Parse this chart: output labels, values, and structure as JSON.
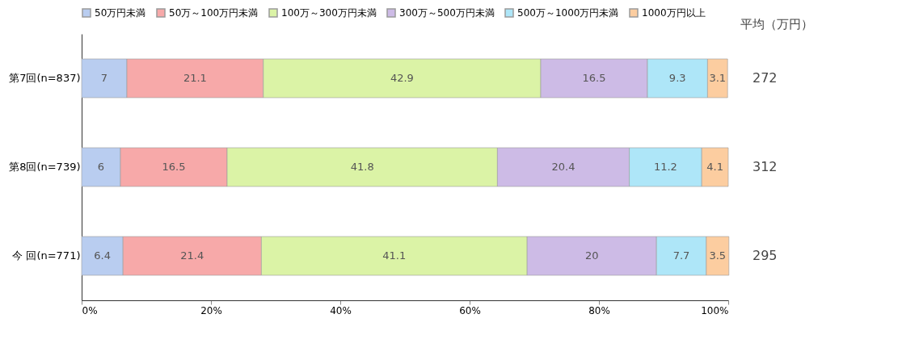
{
  "chart_data": {
    "type": "bar",
    "orientation": "horizontal",
    "stacked": true,
    "data_labels": true,
    "legend": "top",
    "categories": [
      "第7回(n=837)",
      "第8回(n=739)",
      "今 回(n=771)"
    ],
    "series": [
      {
        "name": "50万円未満",
        "color": "#b9cdf0",
        "values": [
          7,
          6,
          6.4
        ]
      },
      {
        "name": "50万～100万円未満",
        "color": "#f7a9a9",
        "values": [
          21.1,
          16.5,
          21.4
        ]
      },
      {
        "name": "100万～300万円未満",
        "color": "#dbf3a6",
        "values": [
          42.9,
          41.8,
          41.1
        ]
      },
      {
        "name": "300万～500万円未満",
        "color": "#cdbbe6",
        "values": [
          16.5,
          20.4,
          20
        ]
      },
      {
        "name": "500万～1000万円未満",
        "color": "#aee6f8",
        "values": [
          9.3,
          11.2,
          7.7
        ]
      },
      {
        "name": "1000万円以上",
        "color": "#fccda0",
        "values": [
          3.1,
          4.1,
          3.5
        ]
      }
    ],
    "xlim": [
      0,
      100
    ],
    "xticks": [
      {
        "value": 0,
        "label": "0%"
      },
      {
        "value": 20,
        "label": "20%"
      },
      {
        "value": 40,
        "label": "40%"
      },
      {
        "value": 60,
        "label": "60%"
      },
      {
        "value": 80,
        "label": "80%"
      },
      {
        "value": 100,
        "label": "100%"
      }
    ],
    "annotations": [
      "平均（万円）",
      "272",
      "312",
      "295"
    ]
  }
}
